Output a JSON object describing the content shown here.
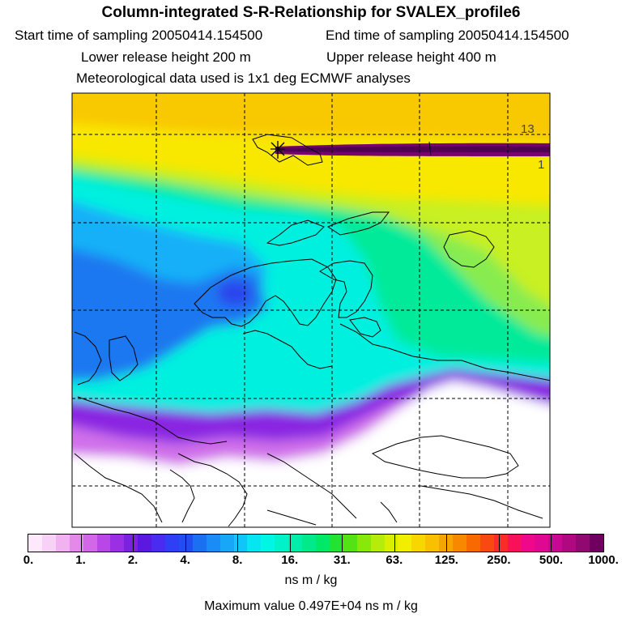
{
  "title": "Column-integrated S-R-Relationship for SVALEX_profile6",
  "start_sampling": "Start time of sampling 20050414.154500",
  "end_sampling": "End time of sampling 20050414.154500",
  "lower_release": "Lower release height  200 m",
  "upper_release": "Upper release height  400 m",
  "met_data": "Meteorological data used is 1x1 deg ECMWF analyses",
  "contour_labels": [
    "13",
    "1"
  ],
  "colorbar": {
    "ticks": [
      "0.",
      "1.",
      "2.",
      "4.",
      "8.",
      "16.",
      "31.",
      "63.",
      "125.",
      "250.",
      "500.",
      "1000."
    ],
    "colors": [
      "#fde9fb",
      "#f8d2f6",
      "#f0b2f0",
      "#e488ea",
      "#d267e8",
      "#b946e6",
      "#9a2fe3",
      "#7a22e0",
      "#5a18e0",
      "#4a2cf0",
      "#2e3ff6",
      "#224df0",
      "#1a70f0",
      "#1a8cf5",
      "#17a6f8",
      "#10c6f8",
      "#05e6f0",
      "#00f6e4",
      "#00f2c8",
      "#00eeaa",
      "#00ea8a",
      "#00e868",
      "#22e232",
      "#54e214",
      "#88e80a",
      "#b6ec0a",
      "#d8f000",
      "#f2ee00",
      "#f8d600",
      "#f8c000",
      "#f8a400",
      "#f88800",
      "#f86a00",
      "#f84a10",
      "#f82c2a",
      "#f8105a",
      "#f0088a",
      "#e00890",
      "#c80890",
      "#b00880",
      "#900870",
      "#700060"
    ],
    "units": "ns m / kg",
    "max_value": "Maximum value  0.497E+04 ns m / kg"
  },
  "colors": {
    "frame": "#000000",
    "grid": "#000000",
    "track": "#800060"
  }
}
